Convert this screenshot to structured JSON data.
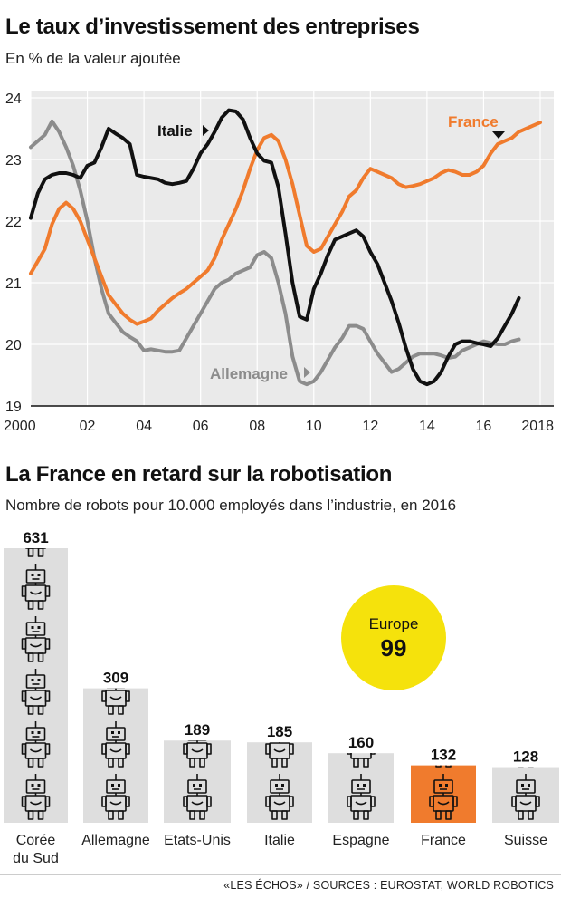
{
  "colors": {
    "france": "#f07b2d",
    "italie": "#111111",
    "allemagne": "#8c8c8c",
    "panel": "#eaeaea",
    "bar": "#dedede",
    "bar_highlight": "#f07b2d",
    "europe_circle": "#f5e20c"
  },
  "chart1": {
    "title": "Le taux d’investissement des entreprises",
    "subtitle": "En % de la valeur ajoutée"
  },
  "chart2": {
    "title": "La France en retard sur la robotisation",
    "subtitle": "Nombre de robots pour 10.000 employés dans l’industrie, en 2016",
    "europe_label": "Europe",
    "europe_value": "99"
  },
  "credit": "«LES ÉCHOS» / SOURCES : EUROSTAT, WORLD ROBOTICS",
  "chart_data": [
    {
      "type": "line",
      "title": "Le taux d’investissement des entreprises",
      "subtitle": "En % de la valeur ajoutée",
      "ylim": [
        19,
        24
      ],
      "xlim": [
        2000,
        2018.5
      ],
      "yticks": [
        19,
        20,
        21,
        22,
        23,
        24
      ],
      "xticks": [
        {
          "value": 2000,
          "label": "2000"
        },
        {
          "value": 2002,
          "label": "02"
        },
        {
          "value": 2004,
          "label": "04"
        },
        {
          "value": 2006,
          "label": "06"
        },
        {
          "value": 2008,
          "label": "08"
        },
        {
          "value": 2010,
          "label": "10"
        },
        {
          "value": 2012,
          "label": "12"
        },
        {
          "value": 2014,
          "label": "14"
        },
        {
          "value": 2016,
          "label": "16"
        },
        {
          "value": 2018,
          "label": "2018"
        }
      ],
      "grid": true,
      "series": [
        {
          "name": "France",
          "color": "#f07b2d",
          "points": [
            [
              2000,
              21.15
            ],
            [
              2000.25,
              21.35
            ],
            [
              2000.5,
              21.55
            ],
            [
              2000.75,
              21.95
            ],
            [
              2001,
              22.2
            ],
            [
              2001.25,
              22.3
            ],
            [
              2001.5,
              22.2
            ],
            [
              2001.75,
              22.0
            ],
            [
              2002,
              21.7
            ],
            [
              2002.25,
              21.4
            ],
            [
              2002.5,
              21.1
            ],
            [
              2002.75,
              20.8
            ],
            [
              2003,
              20.65
            ],
            [
              2003.25,
              20.5
            ],
            [
              2003.5,
              20.4
            ],
            [
              2003.75,
              20.33
            ],
            [
              2004,
              20.37
            ],
            [
              2004.25,
              20.42
            ],
            [
              2004.5,
              20.55
            ],
            [
              2004.75,
              20.65
            ],
            [
              2005,
              20.75
            ],
            [
              2005.25,
              20.83
            ],
            [
              2005.5,
              20.9
            ],
            [
              2005.75,
              21.0
            ],
            [
              2006,
              21.1
            ],
            [
              2006.25,
              21.2
            ],
            [
              2006.5,
              21.4
            ],
            [
              2006.75,
              21.7
            ],
            [
              2007,
              21.95
            ],
            [
              2007.25,
              22.2
            ],
            [
              2007.5,
              22.5
            ],
            [
              2007.75,
              22.85
            ],
            [
              2008,
              23.15
            ],
            [
              2008.25,
              23.35
            ],
            [
              2008.5,
              23.4
            ],
            [
              2008.75,
              23.3
            ],
            [
              2009,
              23.0
            ],
            [
              2009.25,
              22.6
            ],
            [
              2009.5,
              22.1
            ],
            [
              2009.75,
              21.6
            ],
            [
              2010,
              21.5
            ],
            [
              2010.25,
              21.55
            ],
            [
              2010.5,
              21.75
            ],
            [
              2010.75,
              21.95
            ],
            [
              2011,
              22.15
            ],
            [
              2011.25,
              22.4
            ],
            [
              2011.5,
              22.5
            ],
            [
              2011.75,
              22.7
            ],
            [
              2012,
              22.85
            ],
            [
              2012.25,
              22.8
            ],
            [
              2012.5,
              22.75
            ],
            [
              2012.75,
              22.7
            ],
            [
              2013,
              22.6
            ],
            [
              2013.25,
              22.55
            ],
            [
              2013.5,
              22.57
            ],
            [
              2013.75,
              22.6
            ],
            [
              2014,
              22.65
            ],
            [
              2014.25,
              22.7
            ],
            [
              2014.5,
              22.78
            ],
            [
              2014.75,
              22.83
            ],
            [
              2015,
              22.8
            ],
            [
              2015.25,
              22.75
            ],
            [
              2015.5,
              22.75
            ],
            [
              2015.75,
              22.8
            ],
            [
              2016,
              22.9
            ],
            [
              2016.25,
              23.1
            ],
            [
              2016.5,
              23.25
            ],
            [
              2016.75,
              23.3
            ],
            [
              2017,
              23.35
            ],
            [
              2017.25,
              23.45
            ],
            [
              2017.5,
              23.5
            ],
            [
              2017.75,
              23.55
            ],
            [
              2018,
              23.6
            ]
          ]
        },
        {
          "name": "Italie",
          "color": "#111111",
          "points": [
            [
              2000,
              22.05
            ],
            [
              2000.25,
              22.45
            ],
            [
              2000.5,
              22.68
            ],
            [
              2000.75,
              22.75
            ],
            [
              2001,
              22.78
            ],
            [
              2001.25,
              22.78
            ],
            [
              2001.5,
              22.75
            ],
            [
              2001.75,
              22.7
            ],
            [
              2002,
              22.9
            ],
            [
              2002.25,
              22.95
            ],
            [
              2002.5,
              23.2
            ],
            [
              2002.75,
              23.5
            ],
            [
              2003,
              23.42
            ],
            [
              2003.25,
              23.35
            ],
            [
              2003.5,
              23.25
            ],
            [
              2003.75,
              22.75
            ],
            [
              2004,
              22.72
            ],
            [
              2004.25,
              22.7
            ],
            [
              2004.5,
              22.68
            ],
            [
              2004.75,
              22.62
            ],
            [
              2005,
              22.6
            ],
            [
              2005.25,
              22.62
            ],
            [
              2005.5,
              22.65
            ],
            [
              2005.75,
              22.85
            ],
            [
              2006,
              23.1
            ],
            [
              2006.25,
              23.25
            ],
            [
              2006.5,
              23.45
            ],
            [
              2006.75,
              23.68
            ],
            [
              2007,
              23.8
            ],
            [
              2007.25,
              23.78
            ],
            [
              2007.5,
              23.65
            ],
            [
              2007.75,
              23.35
            ],
            [
              2008,
              23.1
            ],
            [
              2008.25,
              22.98
            ],
            [
              2008.5,
              22.95
            ],
            [
              2008.75,
              22.55
            ],
            [
              2009,
              21.8
            ],
            [
              2009.25,
              21.0
            ],
            [
              2009.5,
              20.45
            ],
            [
              2009.75,
              20.4
            ],
            [
              2010,
              20.9
            ],
            [
              2010.25,
              21.15
            ],
            [
              2010.5,
              21.45
            ],
            [
              2010.75,
              21.7
            ],
            [
              2011,
              21.75
            ],
            [
              2011.25,
              21.8
            ],
            [
              2011.5,
              21.85
            ],
            [
              2011.75,
              21.75
            ],
            [
              2012,
              21.5
            ],
            [
              2012.25,
              21.3
            ],
            [
              2012.5,
              21.0
            ],
            [
              2012.75,
              20.7
            ],
            [
              2013,
              20.35
            ],
            [
              2013.25,
              19.95
            ],
            [
              2013.5,
              19.6
            ],
            [
              2013.75,
              19.4
            ],
            [
              2014,
              19.35
            ],
            [
              2014.25,
              19.4
            ],
            [
              2014.5,
              19.55
            ],
            [
              2014.75,
              19.8
            ],
            [
              2015,
              20.0
            ],
            [
              2015.25,
              20.05
            ],
            [
              2015.5,
              20.05
            ],
            [
              2015.75,
              20.02
            ],
            [
              2016,
              20.0
            ],
            [
              2016.25,
              19.97
            ],
            [
              2016.5,
              20.1
            ],
            [
              2016.75,
              20.3
            ],
            [
              2017,
              20.5
            ],
            [
              2017.25,
              20.75
            ]
          ]
        },
        {
          "name": "Allemagne",
          "color": "#8c8c8c",
          "points": [
            [
              2000,
              23.2
            ],
            [
              2000.25,
              23.3
            ],
            [
              2000.5,
              23.4
            ],
            [
              2000.75,
              23.62
            ],
            [
              2001,
              23.45
            ],
            [
              2001.25,
              23.2
            ],
            [
              2001.5,
              22.9
            ],
            [
              2001.75,
              22.5
            ],
            [
              2002,
              22.0
            ],
            [
              2002.25,
              21.4
            ],
            [
              2002.5,
              20.9
            ],
            [
              2002.75,
              20.5
            ],
            [
              2003,
              20.35
            ],
            [
              2003.25,
              20.2
            ],
            [
              2003.5,
              20.12
            ],
            [
              2003.75,
              20.05
            ],
            [
              2004,
              19.9
            ],
            [
              2004.25,
              19.92
            ],
            [
              2004.5,
              19.9
            ],
            [
              2004.75,
              19.88
            ],
            [
              2005,
              19.88
            ],
            [
              2005.25,
              19.9
            ],
            [
              2005.5,
              20.1
            ],
            [
              2005.75,
              20.3
            ],
            [
              2006,
              20.5
            ],
            [
              2006.25,
              20.7
            ],
            [
              2006.5,
              20.9
            ],
            [
              2006.75,
              21.0
            ],
            [
              2007,
              21.05
            ],
            [
              2007.25,
              21.15
            ],
            [
              2007.5,
              21.2
            ],
            [
              2007.75,
              21.25
            ],
            [
              2008,
              21.45
            ],
            [
              2008.25,
              21.5
            ],
            [
              2008.5,
              21.4
            ],
            [
              2008.75,
              21.0
            ],
            [
              2009,
              20.5
            ],
            [
              2009.25,
              19.8
            ],
            [
              2009.5,
              19.4
            ],
            [
              2009.75,
              19.35
            ],
            [
              2010,
              19.4
            ],
            [
              2010.25,
              19.55
            ],
            [
              2010.5,
              19.75
            ],
            [
              2010.75,
              19.95
            ],
            [
              2011,
              20.1
            ],
            [
              2011.25,
              20.3
            ],
            [
              2011.5,
              20.3
            ],
            [
              2011.75,
              20.25
            ],
            [
              2012,
              20.05
            ],
            [
              2012.25,
              19.85
            ],
            [
              2012.5,
              19.7
            ],
            [
              2012.75,
              19.55
            ],
            [
              2013,
              19.6
            ],
            [
              2013.25,
              19.7
            ],
            [
              2013.5,
              19.8
            ],
            [
              2013.75,
              19.85
            ],
            [
              2014,
              19.85
            ],
            [
              2014.25,
              19.85
            ],
            [
              2014.5,
              19.82
            ],
            [
              2014.75,
              19.78
            ],
            [
              2015,
              19.8
            ],
            [
              2015.25,
              19.9
            ],
            [
              2015.5,
              19.95
            ],
            [
              2015.75,
              20.0
            ],
            [
              2016,
              20.05
            ],
            [
              2016.25,
              20.02
            ],
            [
              2016.5,
              20.0
            ],
            [
              2016.75,
              20.0
            ],
            [
              2017,
              20.05
            ],
            [
              2017.25,
              20.08
            ]
          ]
        }
      ]
    },
    {
      "type": "bar",
      "title": "La France en retard sur la robotisation",
      "subtitle": "Nombre de robots pour 10.000 employés dans l’industrie, en 2016",
      "categories": [
        "Corée du Sud",
        "Allemagne",
        "Etats-Unis",
        "Italie",
        "Espagne",
        "France",
        "Suisse"
      ],
      "category_lines": [
        [
          "Corée",
          "du Sud"
        ],
        [
          "Allemagne"
        ],
        [
          "Etats-Unis"
        ],
        [
          "Italie"
        ],
        [
          "Espagne"
        ],
        [
          "France"
        ],
        [
          "Suisse"
        ]
      ],
      "values": [
        631,
        309,
        189,
        185,
        160,
        132,
        128
      ],
      "highlight": "France",
      "annotation": {
        "label": "Europe",
        "value": 99
      }
    }
  ]
}
